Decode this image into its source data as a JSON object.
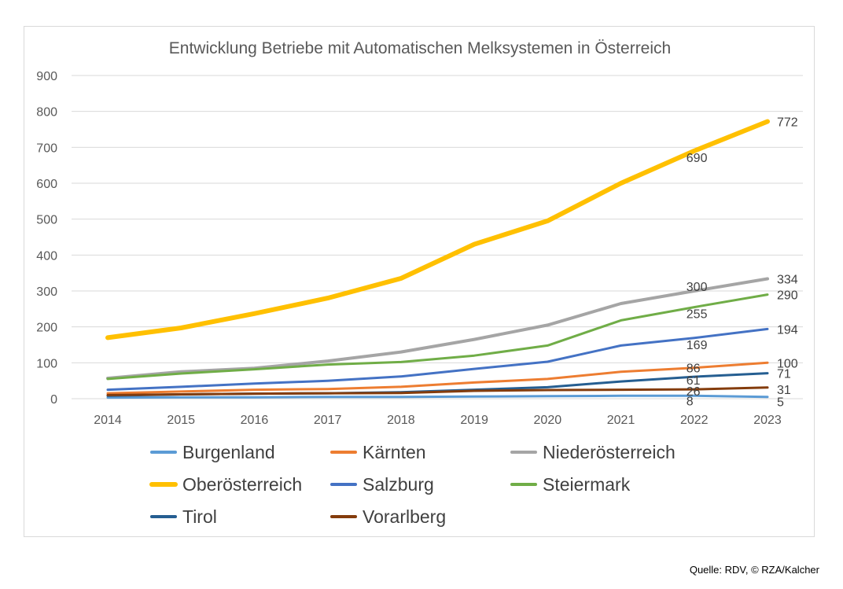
{
  "chart_data": {
    "type": "line",
    "title": "Entwicklung Betriebe mit Automatischen Melksystemen in Österreich",
    "xlabel": "",
    "ylabel": "",
    "categories": [
      "2014",
      "2015",
      "2016",
      "2017",
      "2018",
      "2019",
      "2020",
      "2021",
      "2022",
      "2023"
    ],
    "ylim": [
      0,
      900
    ],
    "yticks": [
      0,
      100,
      200,
      300,
      400,
      500,
      600,
      700,
      800,
      900
    ],
    "grid": true,
    "legend_position": "bottom",
    "series": [
      {
        "name": "Burgenland",
        "color": "#5b9bd5",
        "width": 3,
        "values": [
          3,
          4,
          4,
          5,
          5,
          6,
          7,
          8,
          8,
          5
        ],
        "labels": {
          "8": "8",
          "9": "5"
        }
      },
      {
        "name": "Kärnten",
        "color": "#ed7d31",
        "width": 3,
        "values": [
          15,
          20,
          25,
          27,
          33,
          45,
          55,
          75,
          86,
          100
        ],
        "labels": {
          "8": "86",
          "9": "100"
        }
      },
      {
        "name": "Niederösterreich",
        "color": "#a5a5a5",
        "width": 4,
        "values": [
          57,
          75,
          85,
          105,
          130,
          165,
          205,
          265,
          300,
          334
        ],
        "labels": {
          "8": "300",
          "9": "334"
        }
      },
      {
        "name": "Oberösterreich",
        "color": "#ffc000",
        "width": 6,
        "values": [
          170,
          197,
          237,
          280,
          335,
          430,
          495,
          600,
          690,
          772
        ],
        "labels": {
          "8": "690",
          "9": "772"
        }
      },
      {
        "name": "Salzburg",
        "color": "#4472c4",
        "width": 3,
        "values": [
          25,
          33,
          42,
          50,
          62,
          83,
          103,
          148,
          169,
          194
        ],
        "labels": {
          "8": "169",
          "9": "194"
        }
      },
      {
        "name": "Steiermark",
        "color": "#70ad47",
        "width": 3,
        "values": [
          55,
          70,
          82,
          95,
          102,
          120,
          148,
          218,
          255,
          290
        ],
        "labels": {
          "8": "255",
          "9": "290"
        }
      },
      {
        "name": "Tirol",
        "color": "#255e91",
        "width": 3,
        "values": [
          8,
          12,
          14,
          15,
          18,
          25,
          32,
          48,
          61,
          71
        ],
        "labels": {
          "8": "61",
          "9": "71"
        }
      },
      {
        "name": "Vorarlberg",
        "color": "#843c0c",
        "width": 3,
        "values": [
          10,
          12,
          14,
          15,
          16,
          22,
          24,
          25,
          26,
          31
        ],
        "labels": {
          "8": "26",
          "9": "31"
        }
      }
    ]
  },
  "source": "Quelle: RDV, © RZA/Kalcher"
}
